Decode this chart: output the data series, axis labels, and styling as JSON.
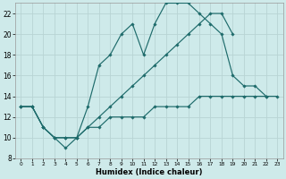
{
  "xlabel": "Humidex (Indice chaleur)",
  "bg_color": "#ceeaea",
  "grid_color": "#b8d4d4",
  "line_color": "#1e6b6b",
  "xlim": [
    -0.5,
    23.5
  ],
  "ylim": [
    8,
    23
  ],
  "xticks": [
    0,
    1,
    2,
    3,
    4,
    5,
    6,
    7,
    8,
    9,
    10,
    11,
    12,
    13,
    14,
    15,
    16,
    17,
    18,
    19,
    20,
    21,
    22,
    23
  ],
  "yticks": [
    8,
    10,
    12,
    14,
    16,
    18,
    20,
    22
  ],
  "line1_y": [
    13,
    13,
    11,
    10,
    9,
    10,
    13,
    17,
    18,
    20,
    21,
    18,
    21,
    23,
    23,
    23,
    22,
    21,
    20,
    16,
    15,
    15,
    14,
    null
  ],
  "line2_y": [
    13,
    13,
    11,
    10,
    10,
    10,
    11,
    12,
    13,
    14,
    15,
    16,
    17,
    18,
    19,
    20,
    21,
    22,
    22,
    20,
    null,
    null,
    null,
    null
  ],
  "line3_y": [
    13,
    13,
    11,
    10,
    10,
    10,
    11,
    11,
    12,
    12,
    12,
    12,
    13,
    13,
    13,
    13,
    14,
    14,
    14,
    14,
    14,
    14,
    14,
    14
  ]
}
